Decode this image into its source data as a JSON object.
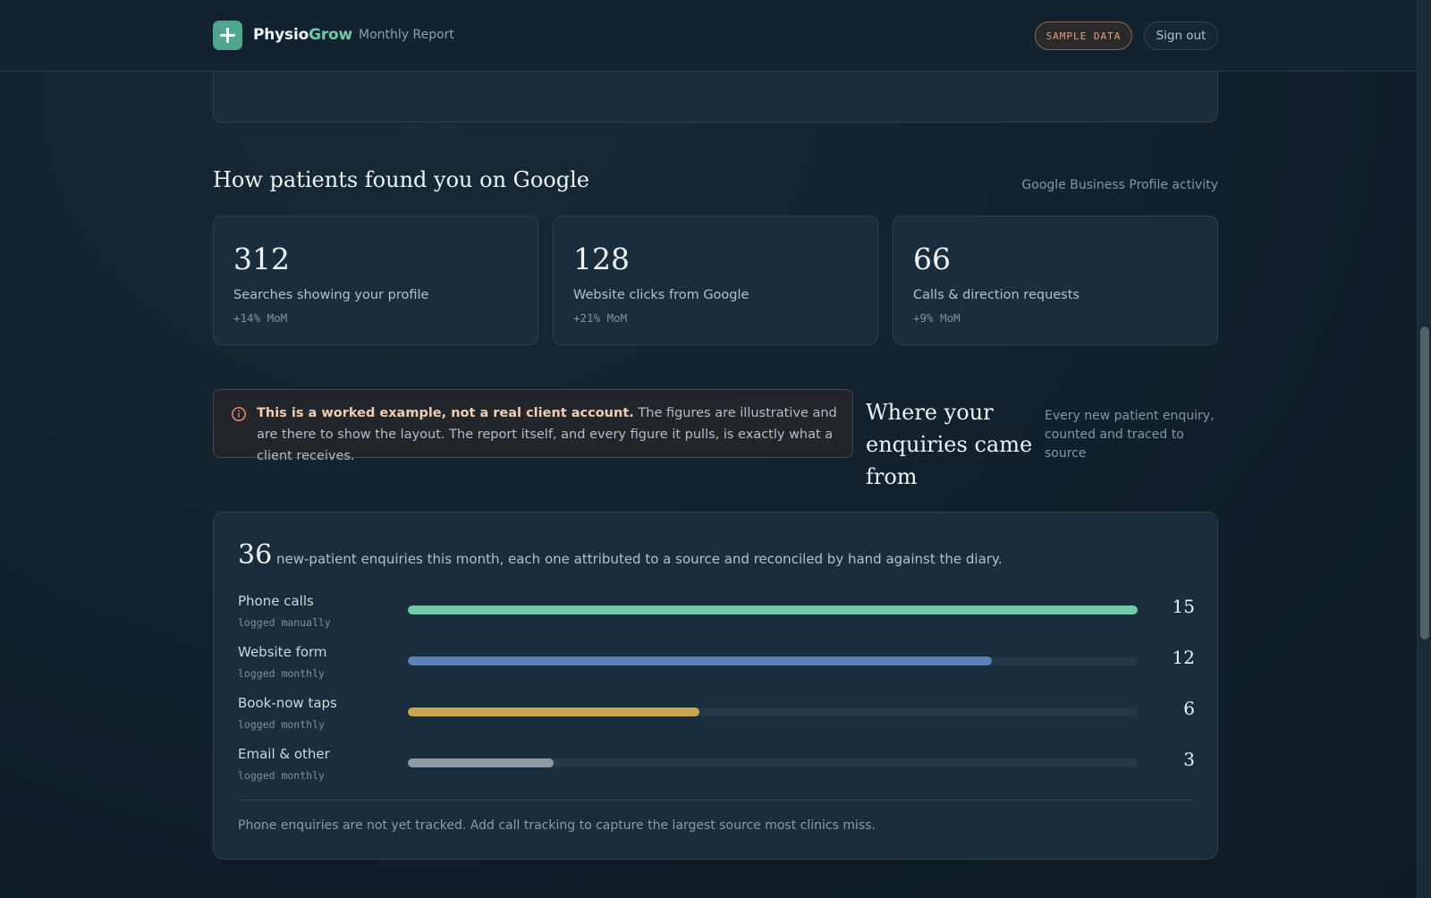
{
  "header": {
    "brand_prefix": "Physio",
    "brand_suffix": "Grow",
    "subtitle": "Monthly Report",
    "sample_badge": "SAMPLE DATA",
    "signout_label": "Sign out"
  },
  "google": {
    "title": "How patients found you on Google",
    "meta": "Google Business Profile activity",
    "stats": [
      {
        "value": "312",
        "label": "Searches showing your profile",
        "delta": "+14% MoM"
      },
      {
        "value": "128",
        "label": "Website clicks from Google",
        "delta": "+21% MoM"
      },
      {
        "value": "66",
        "label": "Calls & direction requests",
        "delta": "+9% MoM"
      }
    ]
  },
  "notice": {
    "bold": "This is a worked example, not a real client account.",
    "text": " The figures are illustrative and are there to show the layout. The report itself, and every figure it pulls, is exactly what a client receives."
  },
  "enquiries": {
    "title": "Where your enquiries came from",
    "subtitle": "Every new patient enquiry, counted and traced to source",
    "total": "36",
    "description": "new-patient enquiries this month, each one attributed to a source and reconciled by hand against the diary.",
    "max": 15,
    "sources": [
      {
        "label": "Phone calls",
        "sub": "logged manually",
        "value": 15,
        "color": "#6fcba6"
      },
      {
        "label": "Website form",
        "sub": "logged monthly",
        "value": 12,
        "color": "#5b82b8"
      },
      {
        "label": "Book-now taps",
        "sub": "logged monthly",
        "value": 6,
        "color": "#c9a64e"
      },
      {
        "label": "Email & other",
        "sub": "logged monthly",
        "value": 3,
        "color": "#8d9aa3"
      }
    ],
    "footnote": "Phone enquiries are not yet tracked. Add call tracking to capture the largest source most clinics miss."
  }
}
